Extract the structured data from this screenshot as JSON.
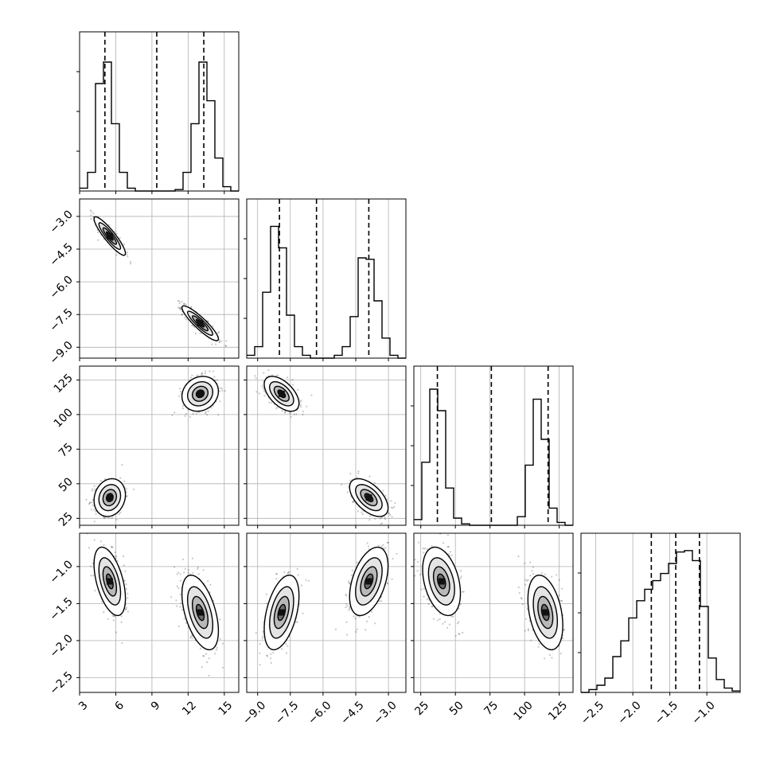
{
  "colors": {
    "ink": "#000000",
    "grid": "#b0b0b0",
    "background": "#ffffff"
  },
  "chart_data": {
    "type": "corner",
    "grid": true,
    "parameters": [
      {
        "range": [
          3,
          16.2
        ],
        "ticks": [
          3,
          6,
          9,
          12,
          15
        ],
        "tick_labels": [
          "3",
          "6",
          "9",
          "12",
          "15"
        ],
        "quantiles": [
          5.1,
          9.4,
          13.3
        ],
        "hist": {
          "edges": [
            3,
            3.66,
            4.32,
            4.98,
            5.64,
            6.3,
            6.96,
            7.62,
            8.28,
            8.94,
            9.6,
            10.26,
            10.92,
            11.58,
            12.24,
            12.9,
            13.56,
            14.22,
            14.88,
            15.54,
            16.2
          ],
          "counts": [
            0.02,
            0.13,
            0.75,
            0.9,
            0.47,
            0.13,
            0.02,
            0.0,
            0.0,
            0.0,
            0.0,
            0.0,
            0.01,
            0.13,
            0.47,
            0.9,
            0.63,
            0.23,
            0.03,
            0.0
          ]
        }
      },
      {
        "range": [
          -9.5,
          -2.2
        ],
        "ticks": [
          -9.0,
          -7.5,
          -6.0,
          -4.5,
          -3.0
        ],
        "tick_labels": [
          "−9.0",
          "−7.5",
          "−6.0",
          "−4.5",
          "−3.0"
        ],
        "quantiles": [
          -8.0,
          -6.3,
          -3.9
        ],
        "hist": {
          "edges": [
            -9.5,
            -9.135,
            -8.77,
            -8.405,
            -8.04,
            -7.675,
            -7.31,
            -6.945,
            -6.58,
            -6.215,
            -5.85,
            -5.485,
            -5.12,
            -4.755,
            -4.39,
            -4.025,
            -3.66,
            -3.295,
            -2.93,
            -2.565,
            -2.2
          ],
          "counts": [
            0.02,
            0.08,
            0.46,
            0.92,
            0.77,
            0.3,
            0.08,
            0.02,
            0.0,
            0.0,
            0.0,
            0.02,
            0.08,
            0.29,
            0.7,
            0.69,
            0.4,
            0.14,
            0.02,
            0.0
          ]
        }
      },
      {
        "range": [
          20,
          135
        ],
        "ticks": [
          25,
          50,
          75,
          100,
          125
        ],
        "tick_labels": [
          "25",
          "50",
          "75",
          "100",
          "125"
        ],
        "quantiles": [
          37,
          76,
          117
        ],
        "hist": {
          "edges": [
            20,
            25.75,
            31.5,
            37.25,
            43,
            48.75,
            54.5,
            60.25,
            66,
            71.75,
            77.5,
            83.25,
            89,
            94.75,
            100.5,
            106.25,
            112,
            117.75,
            123.5,
            129.25,
            135
          ],
          "counts": [
            0.04,
            0.44,
            0.95,
            0.8,
            0.26,
            0.05,
            0.01,
            0.0,
            0.0,
            0.0,
            0.0,
            0.0,
            0.0,
            0.06,
            0.42,
            0.88,
            0.6,
            0.12,
            0.02,
            0.0
          ]
        }
      },
      {
        "range": [
          -2.7,
          -0.55
        ],
        "ticks": [
          -2.5,
          -2.0,
          -1.5,
          -1.0
        ],
        "tick_labels": [
          "−2.5",
          "−2.0",
          "−1.5",
          "−1.0"
        ],
        "quantiles": [
          -1.75,
          -1.42,
          -1.1
        ],
        "hist": {
          "edges": [
            -2.7,
            -2.5925,
            -2.485,
            -2.3775,
            -2.27,
            -2.1625,
            -2.055,
            -1.9475,
            -1.84,
            -1.7325,
            -1.625,
            -1.5175,
            -1.41,
            -1.3025,
            -1.195,
            -1.0875,
            -0.98,
            -0.8725,
            -0.765,
            -0.6575,
            -0.55
          ],
          "counts": [
            0.0,
            0.02,
            0.05,
            0.1,
            0.25,
            0.36,
            0.52,
            0.64,
            0.72,
            0.78,
            0.83,
            0.9,
            0.98,
            0.99,
            0.92,
            0.6,
            0.24,
            0.09,
            0.03,
            0.01
          ]
        }
      }
    ],
    "modes": [
      {
        "means": [
          5.5,
          -3.9,
          40,
          -1.2
        ],
        "sds": [
          0.62,
          0.42,
          6.5,
          0.22
        ]
      },
      {
        "means": [
          13.0,
          -7.9,
          115,
          -1.62
        ],
        "sds": [
          0.72,
          0.38,
          6.0,
          0.24
        ]
      }
    ],
    "correlations": {
      "1-0": -0.9,
      "2-0": 0.15,
      "2-1": -0.55,
      "3-0": -0.5,
      "3-1": 0.45,
      "3-2": -0.35
    }
  }
}
